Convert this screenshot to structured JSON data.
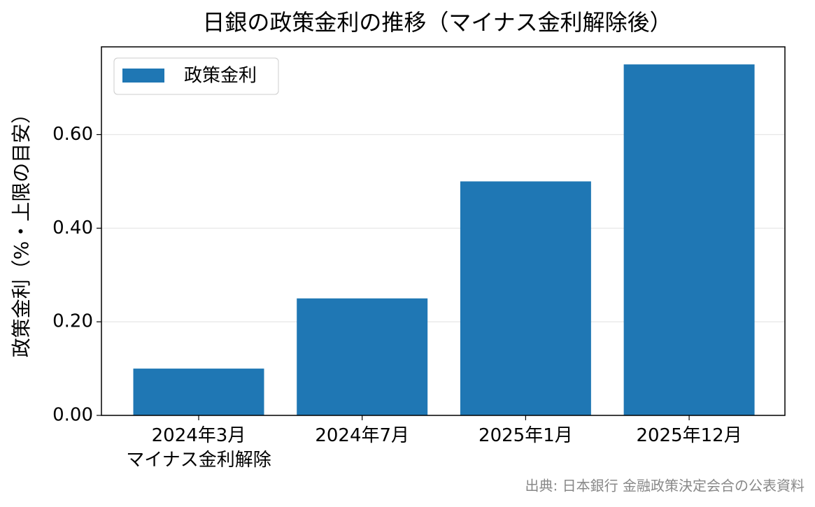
{
  "chart_data": {
    "type": "bar",
    "title": "日銀の政策金利の推移（マイナス金利解除後）",
    "y_label": "政策金利（%・上限の目安）",
    "source": "出典: 日本銀行 金融政策決定会合の公表資料",
    "categories": [
      "2024年3月\nマイナス金利解除",
      "2024年7月",
      "2025年1月",
      "2025年12月"
    ],
    "series": [
      {
        "name": "政策金利",
        "color": "#1f77b4",
        "values": [
          0.1,
          0.25,
          0.5,
          0.75
        ]
      }
    ],
    "ylim": [
      0,
      0.7875
    ],
    "yticks": [
      {
        "value": 0,
        "label": "0.00"
      },
      {
        "value": 0.2,
        "label": "0.20"
      },
      {
        "value": 0.4,
        "label": "0.40"
      },
      {
        "value": 0.6,
        "label": "0.60"
      }
    ],
    "grid": true,
    "legend": "upper left"
  }
}
